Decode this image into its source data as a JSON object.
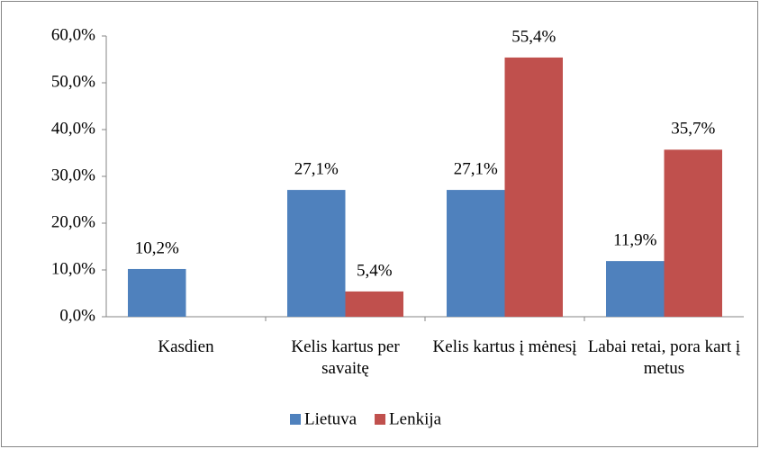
{
  "chart_data": {
    "type": "bar",
    "categories": [
      "Kasdien",
      "Kelis kartus per savaitę",
      "Kelis kartus į mėnesį",
      "Labai retai, pora kart į metus"
    ],
    "series": [
      {
        "name": "Lietuva",
        "color": "#4f81bd",
        "values": [
          10.2,
          27.1,
          27.1,
          11.9
        ],
        "value_labels": [
          "10,2%",
          "27,1%",
          "27,1%",
          "11,9%"
        ]
      },
      {
        "name": "Lenkija",
        "color": "#c0504d",
        "values": [
          null,
          5.4,
          55.4,
          35.7
        ],
        "value_labels": [
          null,
          "5,4%",
          "55,4%",
          "35,7%"
        ]
      }
    ],
    "ylim": [
      0,
      60
    ],
    "yticks": [
      {
        "value": 0,
        "label": "0,0%"
      },
      {
        "value": 10,
        "label": "10,0%"
      },
      {
        "value": 20,
        "label": "20,0%"
      },
      {
        "value": 30,
        "label": "30,0%"
      },
      {
        "value": 40,
        "label": "40,0%"
      },
      {
        "value": 50,
        "label": "50,0%"
      },
      {
        "value": 60,
        "label": "60,0%"
      }
    ],
    "grid": false,
    "legend": "bottom"
  }
}
